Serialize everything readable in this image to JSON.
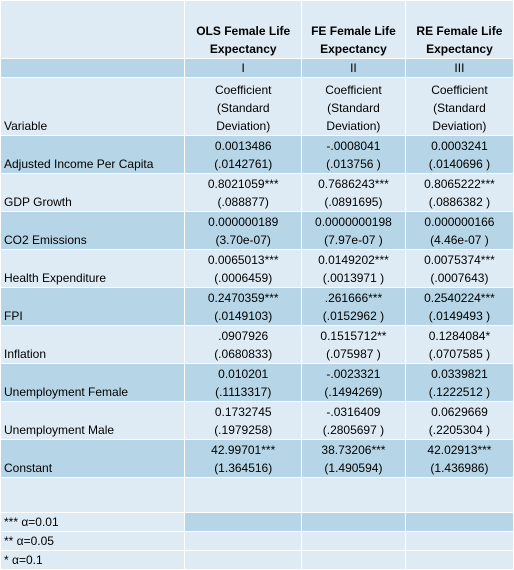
{
  "columns": [
    {
      "title": "OLS Female Life Expectancy",
      "roman": "I",
      "subheader": "Coefficient (Standard Deviation)"
    },
    {
      "title": "FE Female Life Expectancy",
      "roman": "II",
      "subheader": "Coefficient (Standard Deviation)"
    },
    {
      "title": "RE Female Life Expectancy",
      "roman": "III",
      "subheader": "Coefficient (Standard Deviation)"
    }
  ],
  "variable_header": "Variable",
  "rows": [
    {
      "label": "Adjusted Income Per Capita",
      "values": [
        {
          "coef": "0.0013486",
          "se": "(.0142761)"
        },
        {
          "coef": "-.0008041",
          "se": "(.013756 )"
        },
        {
          "coef": "0.0003241",
          "se": "(.0140696 )"
        }
      ]
    },
    {
      "label": "GDP Growth",
      "values": [
        {
          "coef": "0.8021059***",
          "se": "(.088877)"
        },
        {
          "coef": "0.7686243***",
          "se": "(.0891695)"
        },
        {
          "coef": "0.8065222***",
          "se": "(.0886382 )"
        }
      ]
    },
    {
      "label": "CO2 Emissions",
      "values": [
        {
          "coef": "0.000000189",
          "se": "(3.70e-07)"
        },
        {
          "coef": "0.0000000198",
          "se": "(7.97e-07 )"
        },
        {
          "coef": "0.000000166",
          "se": "(4.46e-07 )"
        }
      ]
    },
    {
      "label": "Health Expenditure",
      "values": [
        {
          "coef": "0.0065013***",
          "se": "(.0006459)"
        },
        {
          "coef": "0.0149202***",
          "se": "(.0013971 )"
        },
        {
          "coef": "0.0075374***",
          "se": "(.0007643)"
        }
      ]
    },
    {
      "label": "FPI",
      "values": [
        {
          "coef": "0.2470359***",
          "se": "(.0149103)"
        },
        {
          "coef": ".261666***",
          "se": "(.0152962 )"
        },
        {
          "coef": "0.2540224***",
          "se": "(.0149493 )"
        }
      ]
    },
    {
      "label": "Inflation",
      "values": [
        {
          "coef": ".0907926",
          "se": "(.0680833)"
        },
        {
          "coef": "0.1515712**",
          "se": "(.075987 )"
        },
        {
          "coef": "0.1284084*",
          "se": "(.0707585 )"
        }
      ]
    },
    {
      "label": "Unemployment Female",
      "values": [
        {
          "coef": "0.010201",
          "se": "(.1113317)"
        },
        {
          "coef": "-.0023321",
          "se": "(.1494269)"
        },
        {
          "coef": "0.0339821",
          "se": "(.1222512 )"
        }
      ]
    },
    {
      "label": "Unemployment Male",
      "values": [
        {
          "coef": "0.1732745",
          "se": "(.1979258)"
        },
        {
          "coef": "-.0316409",
          "se": "(.2805697 )"
        },
        {
          "coef": "0.0629669",
          "se": "(.2205304 )"
        }
      ]
    },
    {
      "label": "Constant",
      "values": [
        {
          "coef": "42.99701***",
          "se": "(1.364516)"
        },
        {
          "coef": "38.73206***",
          "se": "(1.490594)"
        },
        {
          "coef": "42.02913***",
          "se": "(1.436986)"
        }
      ]
    }
  ],
  "notes": [
    "*** α=0.01",
    "** α=0.05",
    "* α=0.1"
  ],
  "colors": {
    "light_fill": "#deeaf4",
    "dark_fill": "#b6d5e6",
    "border": "#ffffff"
  }
}
